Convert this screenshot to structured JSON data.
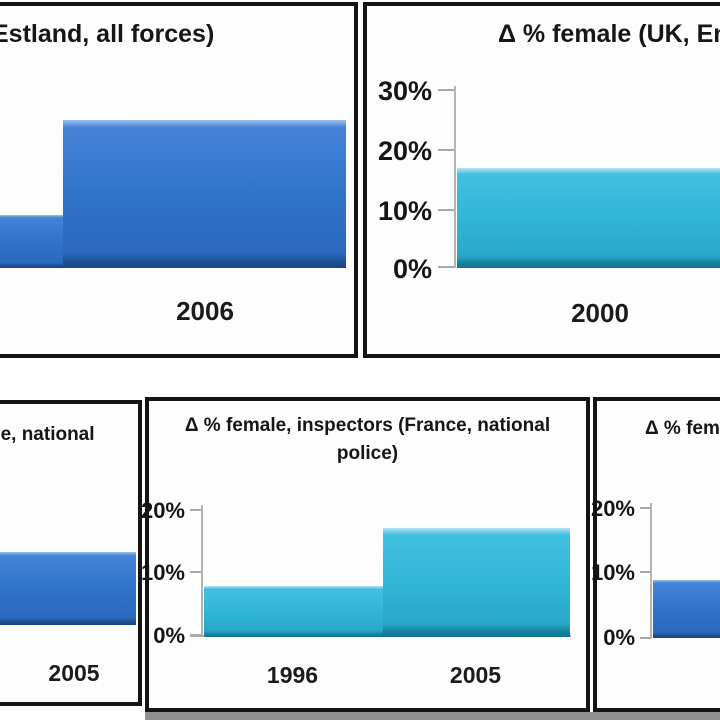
{
  "colors": {
    "bar_blue": "#2e72c9",
    "bar_cyan": "#2fb4d8",
    "panel_border": "#141414",
    "axis_gray": "#b4b4b4",
    "bottom_strip_gray": "#8f8f8f",
    "text": "#111111",
    "background": "#ffffff"
  },
  "panels": {
    "estland": {
      "title_fragment": "Estland, all forces)",
      "x_labels": [
        "2006"
      ]
    },
    "uk": {
      "title_fragment": "Δ % female (UK, En",
      "yticks": [
        "30%",
        "20%",
        "10%",
        "0%"
      ],
      "x_labels": [
        "2000"
      ]
    },
    "france_left": {
      "title_fragment": "ce, national",
      "x_labels": [
        "2005"
      ]
    },
    "france_inspectors": {
      "title_line1": "Δ % female, inspectors (France, national",
      "title_line2": "police)",
      "yticks": [
        "20%",
        "10%",
        "0%"
      ],
      "x_labels": [
        "1996",
        "2005"
      ]
    },
    "right": {
      "title_fragment": "Δ % fem",
      "yticks": [
        "20%",
        "10%",
        "0%"
      ]
    }
  },
  "chart_data": [
    {
      "type": "bar",
      "title": "Estland, all forces)",
      "title_truncated_left": true,
      "categories": [
        "(cut off at left)",
        "2006"
      ],
      "values": [
        9,
        25
      ],
      "values_estimated": true,
      "note": "y-axis cropped off left edge; values estimated from bar heights",
      "bar_color": "#2e72c9"
    },
    {
      "type": "bar",
      "title": "Δ % female (UK, En",
      "title_truncated_right": true,
      "categories": [
        "2000"
      ],
      "values": [
        17
      ],
      "ylim": [
        0,
        30
      ],
      "yticks": [
        "0%",
        "10%",
        "20%",
        "30%"
      ],
      "bar_color": "#2fb4d8"
    },
    {
      "type": "bar",
      "title": "ce, national",
      "title_truncated_left": true,
      "categories": [
        "2005"
      ],
      "values": [
        12
      ],
      "values_estimated": true,
      "note": "y-axis cropped off left edge; value estimated from bar height",
      "bar_color": "#2e72c9"
    },
    {
      "type": "bar",
      "title": "Δ % female, inspectors (France, national police)",
      "categories": [
        "1996",
        "2005"
      ],
      "values": [
        8,
        17
      ],
      "ylim": [
        0,
        20
      ],
      "yticks": [
        "0%",
        "10%",
        "20%"
      ],
      "bar_color": "#2fb4d8"
    },
    {
      "type": "bar",
      "title": "Δ % fem",
      "title_truncated_right": true,
      "categories": [
        "(label cut off)"
      ],
      "values": [
        9
      ],
      "ylim": [
        0,
        20
      ],
      "yticks": [
        "0%",
        "10%",
        "20%"
      ],
      "bar_color": "#2e72c9"
    }
  ]
}
